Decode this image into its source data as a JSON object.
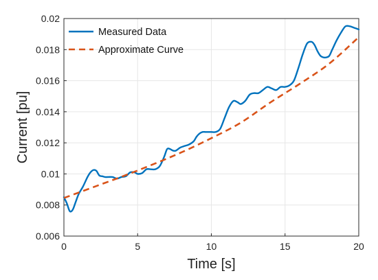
{
  "chart_data": {
    "type": "line",
    "title": "",
    "xlabel": "Time [s]",
    "ylabel": "Current [pu]",
    "xlim": [
      0,
      20
    ],
    "ylim": [
      0.006,
      0.02
    ],
    "xticks": [
      0,
      5,
      10,
      15,
      20
    ],
    "xtick_labels": [
      "0",
      "5",
      "10",
      "15",
      "20"
    ],
    "yticks": [
      0.006,
      0.008,
      0.01,
      0.012,
      0.014,
      0.016,
      0.018,
      0.02
    ],
    "ytick_labels": [
      "0.006",
      "0.008",
      "0.01",
      "0.012",
      "0.014",
      "0.016",
      "0.018",
      "0.02"
    ],
    "grid": true,
    "legend_position": "top-left",
    "series": [
      {
        "name": "Measured Data",
        "color": "#0072BD",
        "style": "solid",
        "x": [
          0,
          0.2,
          0.4,
          0.6,
          0.8,
          1.0,
          1.3,
          1.6,
          1.8,
          2.0,
          2.2,
          2.4,
          2.6,
          2.8,
          3.0,
          3.3,
          3.6,
          3.9,
          4.2,
          4.5,
          4.8,
          5.0,
          5.3,
          5.6,
          5.9,
          6.2,
          6.5,
          6.8,
          7.0,
          7.2,
          7.4,
          7.6,
          7.9,
          8.2,
          8.5,
          8.8,
          9.0,
          9.2,
          9.4,
          9.6,
          9.8,
          10.0,
          10.3,
          10.6,
          10.9,
          11.2,
          11.5,
          11.8,
          12.0,
          12.3,
          12.6,
          12.9,
          13.2,
          13.5,
          13.8,
          14.1,
          14.4,
          14.7,
          15.0,
          15.3,
          15.6,
          15.9,
          16.2,
          16.5,
          16.8,
          17.0,
          17.2,
          17.4,
          17.6,
          17.8,
          18.0,
          18.2,
          18.5,
          18.8,
          19.1,
          19.4,
          19.7,
          20.0
        ],
        "y": [
          0.0085,
          0.0081,
          0.0076,
          0.0077,
          0.0082,
          0.0087,
          0.0092,
          0.0098,
          0.0101,
          0.01025,
          0.0102,
          0.0099,
          0.00985,
          0.0098,
          0.0098,
          0.0098,
          0.0097,
          0.0098,
          0.00985,
          0.0101,
          0.0101,
          0.01,
          0.01005,
          0.0103,
          0.0103,
          0.0103,
          0.0105,
          0.0111,
          0.0116,
          0.0116,
          0.0115,
          0.0115,
          0.0117,
          0.0118,
          0.0119,
          0.0121,
          0.0124,
          0.0126,
          0.0127,
          0.0127,
          0.0127,
          0.0127,
          0.0127,
          0.0129,
          0.0136,
          0.0143,
          0.0147,
          0.0146,
          0.0145,
          0.0147,
          0.0151,
          0.0152,
          0.0152,
          0.0154,
          0.0156,
          0.0155,
          0.0154,
          0.0156,
          0.0156,
          0.0157,
          0.016,
          0.0168,
          0.0177,
          0.0184,
          0.0185,
          0.0183,
          0.0179,
          0.0176,
          0.0175,
          0.0175,
          0.0176,
          0.018,
          0.0186,
          0.0191,
          0.0195,
          0.0195,
          0.0194,
          0.0193
        ]
      },
      {
        "name": "Approximate Curve",
        "color": "#D95319",
        "style": "dashed",
        "x": [
          0,
          2,
          4,
          6,
          8,
          10,
          12,
          14,
          16,
          18,
          20
        ],
        "y": [
          0.00845,
          0.00915,
          0.00985,
          0.0106,
          0.0114,
          0.0123,
          0.0133,
          0.0146,
          0.0158,
          0.0171,
          0.0188
        ]
      }
    ]
  }
}
